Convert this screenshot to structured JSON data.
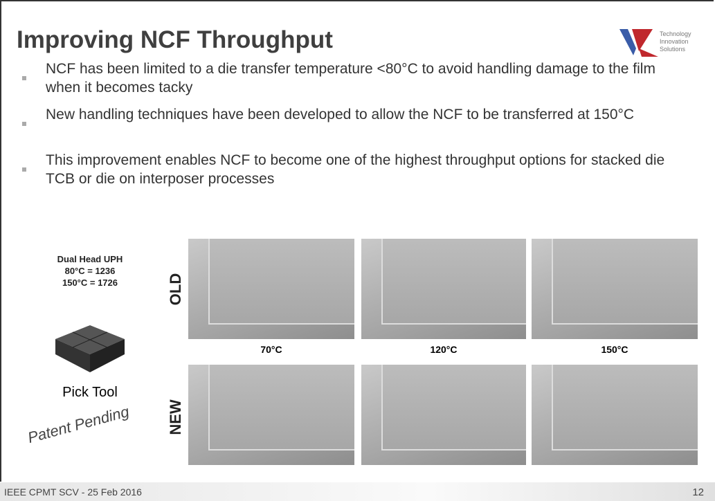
{
  "header": {
    "title": "Improving NCF Throughput",
    "logo_text": "Technology Innovation Solutions"
  },
  "bullets": [
    "NCF has been limited to a die transfer temperature <80°C to avoid handling damage to the film when it becomes tacky",
    "New handling techniques have been developed to allow the NCF to be transferred at 150°C",
    "This improvement enables NCF to become one of the highest throughput options for stacked die TCB or die on interposer processes"
  ],
  "uph": {
    "title": "Dual Head UPH",
    "lines": [
      "80°C = 1236",
      "150°C = 1726"
    ]
  },
  "pick_tool": "Pick Tool",
  "patent": "Patent Pending",
  "rows": [
    "OLD",
    "NEW"
  ],
  "columns": [
    "70°C",
    "120°C",
    "150°C"
  ],
  "footer": {
    "text": "IEEE CPMT SCV - 25 Feb 2016",
    "page": "12"
  }
}
